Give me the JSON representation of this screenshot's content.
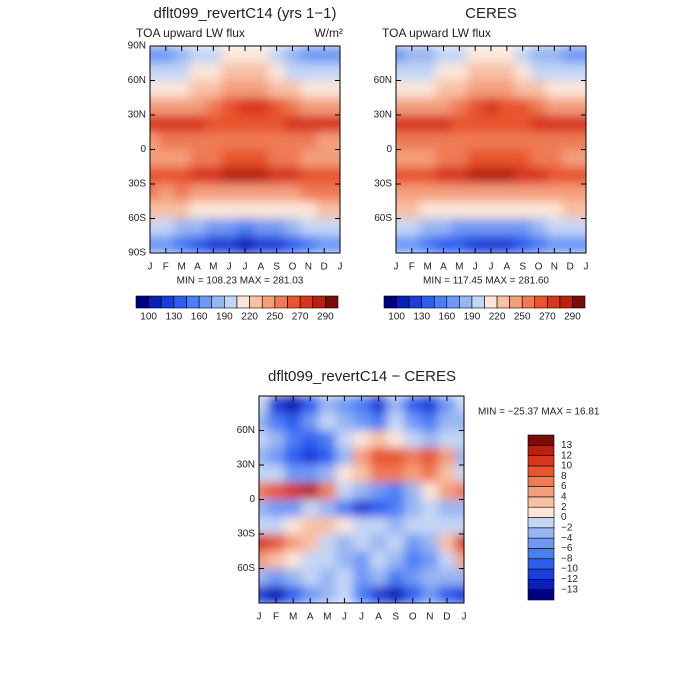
{
  "chart_data": [
    {
      "type": "contour",
      "title": "dflt099_revertC14 (yrs 1−1)",
      "subtitle": "TOA upward LW flux",
      "units": "W/m²",
      "stats": "MIN = 108.23 MAX = 281.03",
      "x": [
        "J",
        "F",
        "M",
        "A",
        "M",
        "J",
        "J",
        "A",
        "S",
        "O",
        "N",
        "D",
        "J"
      ],
      "y": [
        82.5,
        67.5,
        52.5,
        37.5,
        22.5,
        7.5,
        -7.5,
        -22.5,
        -37.5,
        -52.5,
        -67.5,
        -82.5
      ],
      "ylim": [
        -90,
        90
      ],
      "yticks": [
        {
          "value": 90,
          "label": "90N"
        },
        {
          "value": 60,
          "label": "60N"
        },
        {
          "value": 30,
          "label": "30N"
        },
        0,
        {
          "value": -30,
          "label": "30S"
        },
        {
          "value": -60,
          "label": "60S"
        },
        {
          "value": -90,
          "label": "90S"
        }
      ],
      "values": [
        [
          168,
          172,
          180,
          190,
          200,
          208,
          210,
          206,
          195,
          182,
          172,
          168,
          168
        ],
        [
          190,
          192,
          198,
          205,
          215,
          222,
          225,
          222,
          212,
          200,
          192,
          190,
          190
        ],
        [
          210,
          212,
          216,
          222,
          232,
          240,
          242,
          240,
          232,
          222,
          214,
          210,
          210
        ],
        [
          238,
          236,
          238,
          244,
          255,
          268,
          272,
          270,
          262,
          250,
          242,
          238,
          238
        ],
        [
          272,
          274,
          275,
          272,
          268,
          268,
          266,
          268,
          268,
          272,
          274,
          272,
          272
        ],
        [
          248,
          250,
          252,
          255,
          258,
          254,
          250,
          250,
          252,
          256,
          252,
          248,
          248
        ],
        [
          242,
          240,
          244,
          250,
          258,
          262,
          264,
          262,
          256,
          250,
          246,
          242,
          242
        ],
        [
          266,
          264,
          266,
          270,
          276,
          280,
          282,
          280,
          276,
          272,
          268,
          266,
          266
        ],
        [
          250,
          248,
          250,
          248,
          245,
          242,
          240,
          240,
          244,
          248,
          250,
          250,
          250
        ],
        [
          222,
          222,
          220,
          216,
          212,
          210,
          208,
          208,
          210,
          214,
          218,
          222,
          222
        ],
        [
          196,
          194,
          186,
          176,
          165,
          160,
          158,
          160,
          168,
          180,
          190,
          196,
          196
        ],
        [
          168,
          162,
          150,
          135,
          122,
          115,
          112,
          115,
          125,
          140,
          155,
          165,
          168
        ]
      ],
      "levels": [
        100,
        115,
        130,
        145,
        160,
        175,
        190,
        205,
        220,
        235,
        250,
        260,
        270,
        280,
        290
      ],
      "colorbar_label_step": 2,
      "colorbar": "horizontal",
      "colors": [
        "#000080",
        "#0a1fb4",
        "#1a3fd8",
        "#2e5ef0",
        "#4a7ef5",
        "#7099f5",
        "#98b6f2",
        "#c4d6f5",
        "#fbe6d8",
        "#f8c0a4",
        "#f49e7c",
        "#ef7a54",
        "#e8552f",
        "#d8361a",
        "#b8200f",
        "#7a0c05"
      ]
    },
    {
      "type": "contour",
      "title": "CERES",
      "subtitle": "TOA upward LW flux",
      "stats": "MIN = 117.45 MAX = 281.60",
      "x": [
        "J",
        "F",
        "M",
        "A",
        "M",
        "J",
        "J",
        "A",
        "S",
        "O",
        "N",
        "D",
        "J"
      ],
      "y": [
        82.5,
        67.5,
        52.5,
        37.5,
        22.5,
        7.5,
        -7.5,
        -22.5,
        -37.5,
        -52.5,
        -67.5,
        -82.5
      ],
      "ylim": [
        -90,
        90
      ],
      "yticks": [
        {
          "value": 60,
          "label": "60N"
        },
        {
          "value": 30,
          "label": "30N"
        },
        0,
        {
          "value": -30,
          "label": "30S"
        },
        {
          "value": -60,
          "label": "60S"
        }
      ],
      "values": [
        [
          172,
          178,
          186,
          196,
          204,
          212,
          214,
          210,
          200,
          188,
          178,
          172,
          172
        ],
        [
          192,
          196,
          202,
          208,
          218,
          226,
          228,
          226,
          216,
          204,
          196,
          192,
          192
        ],
        [
          212,
          214,
          218,
          224,
          234,
          242,
          244,
          242,
          234,
          224,
          216,
          212,
          212
        ],
        [
          240,
          238,
          240,
          246,
          256,
          266,
          270,
          268,
          260,
          250,
          244,
          240,
          240
        ],
        [
          272,
          272,
          272,
          270,
          266,
          265,
          264,
          265,
          266,
          270,
          272,
          272,
          272
        ],
        [
          250,
          250,
          250,
          252,
          254,
          252,
          250,
          250,
          252,
          254,
          252,
          250,
          250
        ],
        [
          246,
          246,
          248,
          252,
          258,
          264,
          268,
          266,
          260,
          254,
          250,
          246,
          246
        ],
        [
          266,
          266,
          268,
          272,
          276,
          280,
          281,
          280,
          276,
          272,
          268,
          266,
          266
        ],
        [
          248,
          248,
          248,
          246,
          244,
          242,
          240,
          240,
          242,
          246,
          248,
          248,
          248
        ],
        [
          220,
          220,
          218,
          216,
          212,
          210,
          208,
          208,
          210,
          214,
          216,
          220,
          220
        ],
        [
          198,
          196,
          188,
          178,
          168,
          162,
          160,
          162,
          170,
          182,
          192,
          198,
          198
        ],
        [
          172,
          168,
          156,
          142,
          130,
          122,
          118,
          122,
          132,
          146,
          160,
          170,
          172
        ]
      ],
      "levels": [
        100,
        115,
        130,
        145,
        160,
        175,
        190,
        205,
        220,
        235,
        250,
        260,
        270,
        280,
        290
      ],
      "colorbar_label_step": 2,
      "colorbar": "horizontal",
      "colors": [
        "#000080",
        "#0a1fb4",
        "#1a3fd8",
        "#2e5ef0",
        "#4a7ef5",
        "#7099f5",
        "#98b6f2",
        "#c4d6f5",
        "#fbe6d8",
        "#f8c0a4",
        "#f49e7c",
        "#ef7a54",
        "#e8552f",
        "#d8361a",
        "#b8200f",
        "#7a0c05"
      ]
    },
    {
      "type": "contour",
      "title": "dflt099_revertC14 − CERES",
      "stats": "MIN = −25.37 MAX =  16.81",
      "x": [
        "J",
        "F",
        "M",
        "A",
        "M",
        "J",
        "J",
        "A",
        "S",
        "O",
        "N",
        "D",
        "J"
      ],
      "y": [
        82.5,
        67.5,
        52.5,
        37.5,
        22.5,
        7.5,
        -7.5,
        -22.5,
        -37.5,
        -52.5,
        -67.5,
        -82.5
      ],
      "ylim": [
        -90,
        90
      ],
      "yticks": [
        {
          "value": 60,
          "label": "60N"
        },
        {
          "value": 30,
          "label": "30N"
        },
        0,
        {
          "value": -30,
          "label": "30S"
        },
        {
          "value": -60,
          "label": "60S"
        }
      ],
      "values": [
        [
          -2,
          -12,
          -13,
          -10,
          -4,
          -6,
          -8,
          -12,
          -4,
          -10,
          -12,
          -6,
          -2
        ],
        [
          -4,
          -8,
          -10,
          -6,
          -2,
          -4,
          -6,
          -8,
          -2,
          -6,
          -8,
          -4,
          -4
        ],
        [
          -2,
          -4,
          -8,
          -10,
          -8,
          -2,
          0,
          2,
          0,
          -2,
          -4,
          -2,
          -2
        ],
        [
          -4,
          -6,
          -10,
          -12,
          -10,
          -4,
          4,
          8,
          8,
          6,
          8,
          4,
          -4
        ],
        [
          -2,
          -2,
          -6,
          -6,
          -4,
          0,
          2,
          6,
          6,
          4,
          6,
          2,
          -2
        ],
        [
          6,
          8,
          10,
          12,
          6,
          -2,
          -4,
          -6,
          -8,
          -4,
          0,
          4,
          6
        ],
        [
          -4,
          -6,
          -6,
          -2,
          -4,
          -8,
          -12,
          -10,
          -8,
          -4,
          -2,
          -4,
          -4
        ],
        [
          -2,
          -2,
          0,
          2,
          2,
          0,
          -2,
          -2,
          -4,
          -2,
          -2,
          -2,
          -2
        ],
        [
          10,
          8,
          4,
          2,
          -2,
          -4,
          -2,
          -4,
          -2,
          -6,
          -4,
          2,
          10
        ],
        [
          4,
          2,
          0,
          -2,
          -2,
          -4,
          -6,
          -2,
          -4,
          -8,
          -6,
          -2,
          4
        ],
        [
          -4,
          -6,
          -4,
          -2,
          -4,
          -2,
          -6,
          -4,
          -8,
          -6,
          -4,
          -4,
          -4
        ],
        [
          -12,
          -13,
          -10,
          -6,
          -4,
          -2,
          -8,
          -12,
          -13,
          -10,
          -6,
          -10,
          -12
        ]
      ],
      "levels": [
        {
          "value": -13,
          "label": "−13"
        },
        {
          "value": -12,
          "label": "−12"
        },
        {
          "value": -10,
          "label": "−10"
        },
        {
          "value": -8,
          "label": "−8"
        },
        {
          "value": -6,
          "label": "−6"
        },
        {
          "value": -4,
          "label": "−4"
        },
        {
          "value": -2,
          "label": "−2"
        },
        0,
        2,
        4,
        6,
        8,
        10,
        12,
        13
      ],
      "colorbar_label_step": 1,
      "colorbar": "vertical",
      "colors": [
        "#000080",
        "#0a1fb4",
        "#1a3fd8",
        "#2e5ef0",
        "#4a7ef5",
        "#7099f5",
        "#98b6f2",
        "#c4d6f5",
        "#fbe6d8",
        "#f8c0a4",
        "#f49e7c",
        "#ef7a54",
        "#e8552f",
        "#d8361a",
        "#b8200f",
        "#7a0c05"
      ]
    }
  ]
}
